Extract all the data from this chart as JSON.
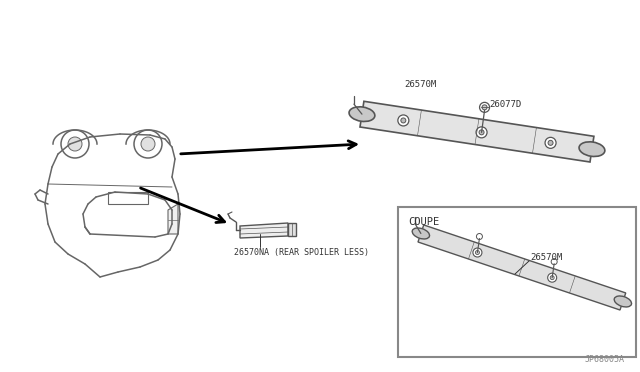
{
  "bg_color": "#ffffff",
  "line_color": "#555555",
  "dark_color": "#333333",
  "fig_width": 6.4,
  "fig_height": 3.72,
  "dpi": 100,
  "part_labels": {
    "top_part": "26570NA (REAR SPOILER LESS)",
    "coupe_label": "COUPE",
    "coupe_part": "26570M",
    "bottom_part": "26570M",
    "bottom_screw": "26077D"
  },
  "footer": "JP68005A"
}
